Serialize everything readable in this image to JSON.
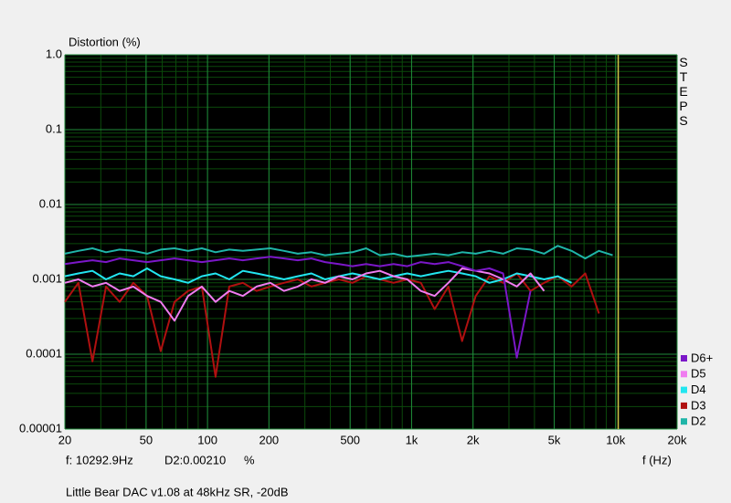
{
  "chart_data": {
    "type": "line",
    "title": "Distortion (%)",
    "side_label": "STEPS",
    "xlabel": "f (Hz)",
    "caption": "Little Bear DAC v1.08 at 48kHz SR, -20dB",
    "cursor": {
      "x": 10292.9,
      "label": "f: 10292.9Hz",
      "readout": "D2:0.00210",
      "unit": "%",
      "color": "#d4c84a"
    },
    "xlog": true,
    "ylog": true,
    "grid": true,
    "minor_grid": true,
    "legend": "lower-right",
    "xlim": [
      20,
      20000
    ],
    "ylim": [
      1e-05,
      1
    ],
    "xticks": [
      20,
      50,
      100,
      200,
      500,
      {
        "value": 1000,
        "label": "1k"
      },
      {
        "value": 2000,
        "label": "2k"
      },
      {
        "value": 5000,
        "label": "5k"
      },
      {
        "value": 10000,
        "label": "10k"
      },
      {
        "value": 20000,
        "label": "20k"
      }
    ],
    "yticks": [
      1e-05,
      0.0001,
      0.001,
      0.01,
      0.1,
      {
        "value": 1,
        "label": "1.0"
      }
    ],
    "x": [
      20,
      23.3,
      27.3,
      31.8,
      37.1,
      43.3,
      50.6,
      59,
      68.9,
      80.4,
      93.8,
      109.5,
      127.8,
      149,
      174,
      203,
      237,
      277,
      323,
      377,
      440,
      513,
      599,
      699,
      816,
      952,
      1111,
      1297,
      1514,
      1767,
      2062,
      2406,
      2808,
      3278,
      3825,
      4464,
      5210,
      6081,
      7097,
      8283,
      9667
    ],
    "series": [
      {
        "name": "D6+",
        "color": "#7b17c8",
        "values": [
          0.0016,
          0.0017,
          0.0018,
          0.0017,
          0.0019,
          0.0018,
          0.0017,
          0.0018,
          0.0019,
          0.0018,
          0.0017,
          0.0018,
          0.0019,
          0.0018,
          0.0019,
          0.002,
          0.0019,
          0.0018,
          0.0019,
          0.0017,
          0.0016,
          0.0015,
          0.0016,
          0.0015,
          0.0016,
          0.0015,
          0.0017,
          0.0016,
          0.0017,
          0.0015,
          0.0013,
          0.0014,
          0.0012,
          9e-05,
          0.0007,
          null,
          null,
          null,
          null,
          null,
          null
        ]
      },
      {
        "name": "D5",
        "color": "#f07cf0",
        "values": [
          0.0009,
          0.001,
          0.0008,
          0.0009,
          0.0007,
          0.0008,
          0.0006,
          0.0005,
          0.00028,
          0.0006,
          0.0008,
          0.0005,
          0.0007,
          0.0006,
          0.0008,
          0.0009,
          0.0007,
          0.0008,
          0.001,
          0.0009,
          0.0011,
          0.001,
          0.0012,
          0.0013,
          0.0011,
          0.001,
          0.0007,
          0.0006,
          0.0009,
          0.0014,
          0.0013,
          0.0012,
          0.001,
          0.0008,
          0.0012,
          0.0007,
          null,
          null,
          null,
          null,
          null
        ]
      },
      {
        "name": "D4",
        "color": "#22e6f0",
        "values": [
          0.0011,
          0.0012,
          0.0013,
          0.001,
          0.0012,
          0.0011,
          0.0014,
          0.0011,
          0.001,
          0.0009,
          0.0011,
          0.0012,
          0.001,
          0.0013,
          0.0012,
          0.0011,
          0.001,
          0.0011,
          0.0012,
          0.001,
          0.0011,
          0.0012,
          0.0011,
          0.001,
          0.0011,
          0.0012,
          0.0011,
          0.0012,
          0.0013,
          0.0012,
          0.0011,
          0.0009,
          0.001,
          0.0012,
          0.0011,
          0.001,
          0.0011,
          0.0009,
          null,
          null,
          null
        ]
      },
      {
        "name": "D3",
        "color": "#b01010",
        "values": [
          0.0005,
          0.0009,
          8e-05,
          0.0008,
          0.0005,
          0.0009,
          0.0006,
          0.00011,
          0.0005,
          0.0007,
          0.0008,
          5e-05,
          0.0008,
          0.0009,
          0.0007,
          0.0008,
          0.0009,
          0.001,
          0.0008,
          0.0009,
          0.001,
          0.0009,
          0.0011,
          0.001,
          0.0009,
          0.001,
          0.0009,
          0.0004,
          0.0008,
          0.00015,
          0.0006,
          0.0011,
          0.0009,
          0.0012,
          0.0007,
          0.0009,
          0.0011,
          0.0008,
          0.0012,
          0.00035,
          null
        ]
      },
      {
        "name": "D2",
        "color": "#1fb5a8",
        "values": [
          0.0022,
          0.0024,
          0.0026,
          0.0023,
          0.0025,
          0.0024,
          0.0022,
          0.0025,
          0.0026,
          0.0024,
          0.0026,
          0.0023,
          0.0025,
          0.0024,
          0.0025,
          0.0026,
          0.0024,
          0.0022,
          0.0023,
          0.0021,
          0.0022,
          0.0023,
          0.0026,
          0.0021,
          0.0022,
          0.002,
          0.0021,
          0.0022,
          0.0021,
          0.0023,
          0.0022,
          0.0024,
          0.0022,
          0.0026,
          0.0025,
          0.0022,
          0.0028,
          0.0024,
          0.0019,
          0.0024,
          0.0021
        ]
      }
    ]
  }
}
